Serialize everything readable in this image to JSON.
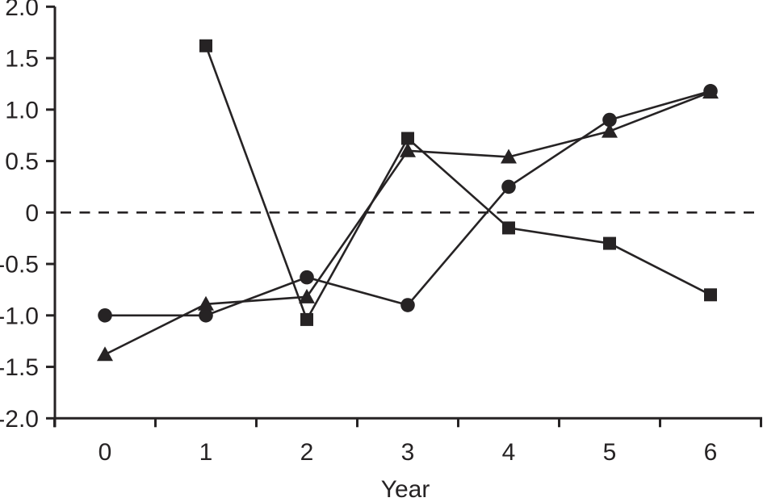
{
  "chart_data": {
    "type": "line",
    "title": "",
    "xlabel": "Year",
    "ylabel": "",
    "x_values": [
      0,
      1,
      2,
      3,
      4,
      5,
      6
    ],
    "x_tick_labels": [
      "0",
      "1",
      "2",
      "3",
      "4",
      "5",
      "6"
    ],
    "y_tick_values": [
      2.0,
      1.5,
      1.0,
      0.5,
      0,
      -0.5,
      -1.0,
      -1.5,
      -2.0
    ],
    "y_tick_labels": [
      "2.0",
      "1.5",
      "1.0",
      "0.5",
      "0",
      "-0.5",
      "-1.0",
      "-1.5",
      "-2.0"
    ],
    "ylim": [
      -2.0,
      2.0
    ],
    "grid": false,
    "legend_position": "none",
    "ink_color": "#262324",
    "zero_line": {
      "value": 0,
      "style": "dashed"
    },
    "series": [
      {
        "name": "circle-series",
        "marker": "circle",
        "values": [
          -1.0,
          -1.0,
          -0.63,
          -0.9,
          0.25,
          0.9,
          1.18
        ]
      },
      {
        "name": "square-series",
        "marker": "square",
        "values": [
          null,
          1.62,
          -1.04,
          0.72,
          -0.15,
          -0.3,
          -0.8
        ]
      },
      {
        "name": "triangle-series",
        "marker": "triangle",
        "values": [
          -1.38,
          -0.89,
          -0.82,
          0.6,
          0.54,
          0.79,
          1.17
        ]
      }
    ]
  }
}
